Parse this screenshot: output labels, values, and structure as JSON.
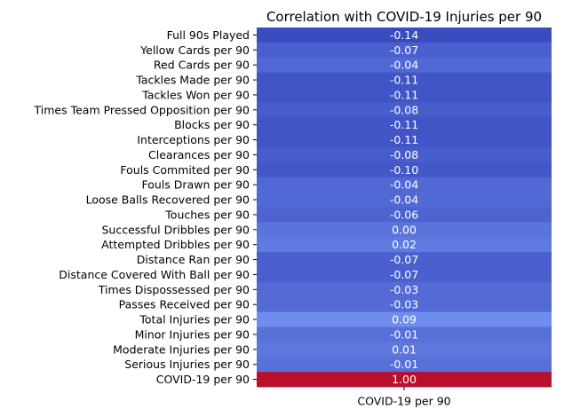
{
  "chart_data": {
    "type": "heatmap",
    "title": "Correlation with COVID-19 Injuries per 90",
    "xlabel": "",
    "ylabel": "",
    "columns": [
      "COVID-19 per 90"
    ],
    "rows": [
      "Full 90s Played",
      "Yellow Cards per 90",
      "Red Cards  per 90",
      "Tackles Made per 90",
      "Tackles Won per 90",
      "Times Team Pressed Opposition per 90",
      "Blocks  per 90",
      "Interceptions per 90",
      "Clearances per 90",
      "Fouls Commited per 90",
      "Fouls Drawn per 90",
      "Loose Balls Recovered per 90",
      "Touches per 90",
      "Successful Dribbles per 90",
      "Attempted Dribbles per 90",
      "Distance Ran per 90",
      "Distance Covered With Ball per 90",
      "Times Dispossessed per 90",
      "Passes Received per 90",
      "Total Injuries per 90",
      "Minor Injuries per 90",
      "Moderate Injuries per 90",
      "Serious Injuries per 90",
      "COVID-19 per 90"
    ],
    "values": [
      -0.14,
      -0.07,
      -0.04,
      -0.11,
      -0.11,
      -0.08,
      -0.11,
      -0.11,
      -0.08,
      -0.1,
      -0.04,
      -0.04,
      -0.06,
      0.0,
      0.02,
      -0.07,
      -0.07,
      -0.03,
      -0.03,
      0.09,
      -0.01,
      0.01,
      -0.01,
      1.0
    ],
    "value_labels": [
      "-0.14",
      "-0.07",
      "-0.04",
      "-0.11",
      "-0.11",
      "-0.08",
      "-0.11",
      "-0.11",
      "-0.08",
      "-0.10",
      "-0.04",
      "-0.04",
      "-0.06",
      "0.00",
      "0.02",
      "-0.07",
      "-0.07",
      "-0.03",
      "-0.03",
      "0.09",
      "-0.01",
      "0.01",
      "-0.01",
      "1.00"
    ],
    "colormap": "coolwarm",
    "colors": {
      "low": "#3b4cc0",
      "high": "#b40426"
    },
    "colorbar": false,
    "grid": false
  }
}
